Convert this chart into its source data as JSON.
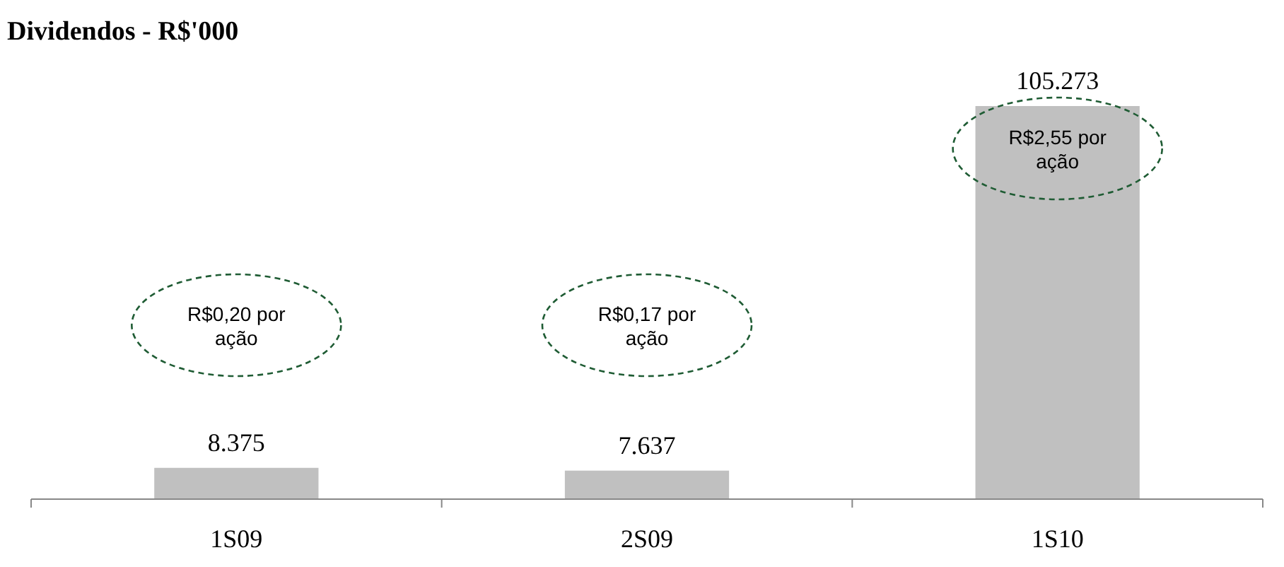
{
  "chart_data": {
    "type": "bar",
    "title": "Dividendos - R$'000",
    "categories": [
      "1S09",
      "2S09",
      "1S10"
    ],
    "values": [
      8375,
      7637,
      105273
    ],
    "value_labels": [
      "8.375",
      "7.637",
      "105.273"
    ],
    "color": "#c0c0c0",
    "annotations": [
      "R$0,20 por ação",
      "R$0,17 por ação",
      "R$2,55 por ação"
    ]
  }
}
